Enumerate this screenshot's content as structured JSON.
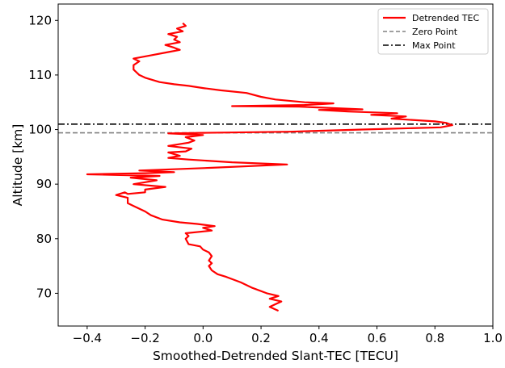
{
  "chart_data": {
    "type": "line",
    "xlabel": "Smoothed-Detrended Slant-TEC [TECU]",
    "ylabel": "Altitude [km]",
    "xlim": [
      -0.5,
      1.0
    ],
    "ylim": [
      64,
      123
    ],
    "xticks": [
      -0.4,
      -0.2,
      0.0,
      0.2,
      0.4,
      0.6,
      0.8,
      1.0
    ],
    "xtick_labels": [
      "−0.4",
      "−0.2",
      "0.0",
      "0.2",
      "0.4",
      "0.6",
      "0.8",
      "1.0"
    ],
    "yticks": [
      70,
      80,
      90,
      100,
      110,
      120
    ],
    "ytick_labels": [
      "70",
      "80",
      "90",
      "100",
      "110",
      "120"
    ],
    "grid": false,
    "legend_position": "upper right",
    "colors": {
      "detrended": "#ff0000",
      "zero": "#808080",
      "max": "#000000"
    },
    "series": [
      {
        "name": "Detrended TEC",
        "style": "solid",
        "points": [
          [
            0.26,
            66.8
          ],
          [
            0.23,
            67.5
          ],
          [
            0.25,
            68.0
          ],
          [
            0.27,
            68.5
          ],
          [
            0.23,
            69.0
          ],
          [
            0.26,
            69.5
          ],
          [
            0.22,
            70.0
          ],
          [
            0.17,
            71.0
          ],
          [
            0.13,
            72.0
          ],
          [
            0.08,
            73.0
          ],
          [
            0.05,
            73.5
          ],
          [
            0.03,
            74.2
          ],
          [
            0.02,
            75.0
          ],
          [
            0.03,
            75.5
          ],
          [
            0.02,
            76.0
          ],
          [
            0.03,
            76.8
          ],
          [
            0.02,
            77.5
          ],
          [
            0.0,
            78.0
          ],
          [
            -0.01,
            78.6
          ],
          [
            -0.05,
            79.0
          ],
          [
            -0.06,
            80.0
          ],
          [
            -0.05,
            80.5
          ],
          [
            -0.06,
            81.0
          ],
          [
            0.03,
            81.5
          ],
          [
            0.0,
            82.0
          ],
          [
            0.04,
            82.3
          ],
          [
            -0.02,
            82.7
          ],
          [
            -0.08,
            83.0
          ],
          [
            -0.14,
            83.5
          ],
          [
            -0.18,
            84.3
          ],
          [
            -0.2,
            85.0
          ],
          [
            -0.24,
            86.0
          ],
          [
            -0.26,
            86.5
          ],
          [
            -0.26,
            87.5
          ],
          [
            -0.3,
            88.0
          ],
          [
            -0.27,
            88.5
          ],
          [
            -0.26,
            88.2
          ],
          [
            -0.2,
            88.5
          ],
          [
            -0.2,
            89.0
          ],
          [
            -0.13,
            89.5
          ],
          [
            -0.24,
            90.0
          ],
          [
            -0.16,
            90.7
          ],
          [
            -0.25,
            91.2
          ],
          [
            -0.15,
            91.5
          ],
          [
            -0.4,
            91.8
          ],
          [
            -0.2,
            92.0
          ],
          [
            -0.1,
            92.2
          ],
          [
            -0.22,
            92.5
          ],
          [
            0.03,
            93.0
          ],
          [
            0.29,
            93.6
          ],
          [
            0.1,
            94.0
          ],
          [
            -0.05,
            94.5
          ],
          [
            -0.12,
            94.8
          ],
          [
            -0.08,
            95.2
          ],
          [
            -0.12,
            95.8
          ],
          [
            -0.06,
            96.0
          ],
          [
            -0.04,
            96.5
          ],
          [
            -0.12,
            97.0
          ],
          [
            -0.05,
            97.6
          ],
          [
            -0.03,
            98.0
          ],
          [
            -0.06,
            98.6
          ],
          [
            0.0,
            99.0
          ],
          [
            -0.12,
            99.3
          ],
          [
            0.0,
            99.4
          ],
          [
            0.3,
            99.6
          ],
          [
            0.55,
            100.0
          ],
          [
            0.82,
            100.4
          ],
          [
            0.86,
            100.8
          ],
          [
            0.84,
            101.2
          ],
          [
            0.8,
            101.5
          ],
          [
            0.65,
            102.0
          ],
          [
            0.7,
            102.4
          ],
          [
            0.58,
            102.7
          ],
          [
            0.67,
            103.0
          ],
          [
            0.5,
            103.3
          ],
          [
            0.4,
            103.6
          ],
          [
            0.55,
            103.7
          ],
          [
            0.42,
            104.0
          ],
          [
            0.33,
            104.2
          ],
          [
            0.1,
            104.3
          ],
          [
            0.35,
            104.5
          ],
          [
            0.45,
            104.8
          ],
          [
            0.35,
            105.0
          ],
          [
            0.25,
            105.5
          ],
          [
            0.2,
            106.0
          ],
          [
            0.15,
            106.7
          ],
          [
            0.06,
            107.2
          ],
          [
            0.0,
            107.6
          ],
          [
            -0.05,
            108.0
          ],
          [
            -0.1,
            108.3
          ],
          [
            -0.15,
            108.7
          ],
          [
            -0.2,
            109.5
          ],
          [
            -0.22,
            110.0
          ],
          [
            -0.24,
            111.0
          ],
          [
            -0.24,
            111.8
          ],
          [
            -0.22,
            112.5
          ],
          [
            -0.24,
            113.0
          ],
          [
            -0.18,
            113.6
          ],
          [
            -0.12,
            114.2
          ],
          [
            -0.08,
            114.6
          ],
          [
            -0.1,
            115.0
          ],
          [
            -0.13,
            115.5
          ],
          [
            -0.08,
            116.0
          ],
          [
            -0.1,
            116.5
          ],
          [
            -0.09,
            117.0
          ],
          [
            -0.12,
            117.5
          ],
          [
            -0.07,
            118.0
          ],
          [
            -0.09,
            118.5
          ],
          [
            -0.06,
            119.0
          ],
          [
            -0.07,
            119.5
          ]
        ]
      },
      {
        "name": "Zero Point",
        "style": "dashed",
        "y": 99.4
      },
      {
        "name": "Max Point",
        "style": "dashdot",
        "y": 101.0
      }
    ]
  }
}
